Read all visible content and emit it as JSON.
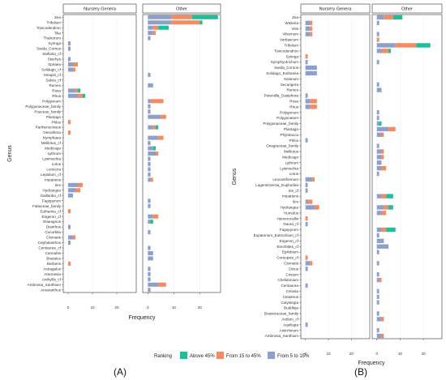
{
  "legend": {
    "title": "Ranking",
    "items": [
      {
        "label": "Above 45%",
        "color": "#1dbf99"
      },
      {
        "label": "From 15 to 45%",
        "color": "#f58b5e"
      },
      {
        "label": "From 5 to 15%",
        "color": "#8da0cb"
      }
    ]
  },
  "chart_data": [
    {
      "type": "bar",
      "orientation": "horizontal",
      "stacked": true,
      "caption": "(A)",
      "xlabel": "Frequency",
      "ylabel": "Genus",
      "facets": [
        "Nursery Genera",
        "Other"
      ],
      "xlim": [
        -2,
        28
      ],
      "xticks": [
        0,
        10,
        20
      ],
      "series_names": [
        "From 5 to 15%",
        "From 15 to 45%",
        "Above 45%"
      ],
      "categories": [
        "Zea",
        "Trifolium",
        "Toxicodendron",
        "Tilia",
        "Thalictrum",
        "Syringa",
        "Swida_Cornus",
        "Stellaria_cf",
        "Stachys",
        "Spiraea",
        "Solidago_cf",
        "Sinapis_cf",
        "Salvia_cf",
        "Rumex",
        "Rosa",
        "Rhus",
        "Polygonum",
        "Polygonaceae_family",
        "Poaceae_family",
        "Plantago",
        "Phlox",
        "Parthenocissus",
        "Oenothera",
        "Nymphaea",
        "Melilotus_cf",
        "Medicago",
        "Lythrum",
        "Lysimachia",
        "Lotus",
        "Lonicera",
        "Lepidium_cf",
        "Impatiens",
        "Ilex",
        "Hydrangea",
        "Gaillardia_cf",
        "Fagopyrum",
        "Fabaceae_family",
        "Euthamia_cf",
        "Erigeron_cf",
        "Elaeagnus",
        "Dianthus",
        "Cucurbita",
        "Clematis",
        "Cephalanthus",
        "Centaurea_cf",
        "Cannabis",
        "Brassica",
        "Berberis",
        "Astragalus",
        "Artemesia",
        "Anthyllis_cf",
        "Ambrosia_Xanthium",
        "Amaranthus"
      ],
      "values": {
        "Nursery Genera": [
          [
            0,
            0,
            0
          ],
          [
            0,
            0,
            0
          ],
          [
            0,
            0,
            0
          ],
          [
            0,
            0,
            0
          ],
          [
            0,
            0,
            0
          ],
          [
            1,
            0,
            0
          ],
          [
            1,
            0,
            0
          ],
          [
            0,
            0,
            0
          ],
          [
            1,
            0,
            0
          ],
          [
            2,
            2,
            0
          ],
          [
            2,
            1,
            0
          ],
          [
            0,
            0,
            0
          ],
          [
            0,
            0,
            0
          ],
          [
            0,
            0,
            0
          ],
          [
            3,
            1,
            1
          ],
          [
            4,
            2,
            1
          ],
          [
            0,
            0,
            0
          ],
          [
            0,
            0,
            0
          ],
          [
            0,
            0,
            0
          ],
          [
            0,
            0,
            0
          ],
          [
            0,
            1,
            0
          ],
          [
            0,
            0,
            0
          ],
          [
            0,
            1,
            0
          ],
          [
            0,
            0,
            0
          ],
          [
            0,
            0,
            0
          ],
          [
            0,
            0,
            0
          ],
          [
            0,
            0,
            0
          ],
          [
            0,
            0,
            0
          ],
          [
            0,
            0,
            0
          ],
          [
            0,
            0,
            0
          ],
          [
            0,
            0,
            0
          ],
          [
            0,
            0,
            0
          ],
          [
            4,
            2,
            0
          ],
          [
            3,
            2,
            0
          ],
          [
            2,
            0,
            0
          ],
          [
            0,
            0,
            0
          ],
          [
            0,
            0,
            0
          ],
          [
            0,
            1,
            0
          ],
          [
            0,
            0,
            0
          ],
          [
            0,
            0,
            0
          ],
          [
            1,
            0,
            0
          ],
          [
            0,
            0,
            0
          ],
          [
            2,
            1,
            0
          ],
          [
            1,
            0,
            0
          ],
          [
            0,
            0,
            0
          ],
          [
            0,
            0,
            0
          ],
          [
            0,
            0,
            0
          ],
          [
            0,
            1,
            0
          ],
          [
            0,
            0,
            0
          ],
          [
            0,
            0,
            0
          ],
          [
            0,
            0,
            0
          ],
          [
            0,
            0,
            0
          ],
          [
            0,
            0,
            0
          ]
        ],
        "Other": [
          [
            9,
            8,
            10
          ],
          [
            9,
            11,
            1
          ],
          [
            2,
            2,
            4
          ],
          [
            2,
            1,
            0
          ],
          [
            1,
            0,
            0
          ],
          [
            0,
            0,
            0
          ],
          [
            0,
            0,
            0
          ],
          [
            0,
            0,
            0
          ],
          [
            0,
            0,
            0
          ],
          [
            0,
            0,
            0
          ],
          [
            0,
            0,
            0
          ],
          [
            1,
            0,
            0
          ],
          [
            0,
            0,
            0
          ],
          [
            2,
            0,
            0
          ],
          [
            0,
            0,
            0
          ],
          [
            0,
            0,
            0
          ],
          [
            1,
            5,
            0
          ],
          [
            1,
            0,
            0
          ],
          [
            1,
            0,
            0
          ],
          [
            5,
            2,
            0
          ],
          [
            0,
            0,
            0
          ],
          [
            2,
            1,
            1
          ],
          [
            0,
            0,
            0
          ],
          [
            4,
            2,
            0
          ],
          [
            1,
            0,
            0
          ],
          [
            2,
            0,
            1
          ],
          [
            3,
            1,
            0
          ],
          [
            1,
            0,
            0
          ],
          [
            1,
            0,
            0
          ],
          [
            1,
            0,
            0
          ],
          [
            1,
            0,
            0
          ],
          [
            1,
            1,
            0
          ],
          [
            0,
            0,
            0
          ],
          [
            0,
            0,
            0
          ],
          [
            0,
            0,
            0
          ],
          [
            1,
            0,
            0
          ],
          [
            1,
            0,
            0
          ],
          [
            0,
            0,
            0
          ],
          [
            2,
            2,
            0
          ],
          [
            1,
            0,
            1
          ],
          [
            0,
            0,
            0
          ],
          [
            1,
            0,
            0
          ],
          [
            0,
            0,
            0
          ],
          [
            0,
            0,
            0
          ],
          [
            1,
            0,
            0
          ],
          [
            2,
            0,
            0
          ],
          [
            2,
            0,
            0
          ],
          [
            0,
            0,
            0
          ],
          [
            1,
            0,
            0
          ],
          [
            1,
            0,
            0
          ],
          [
            1,
            0,
            0
          ],
          [
            4,
            3,
            0
          ],
          [
            1,
            0,
            0
          ]
        ]
      }
    },
    {
      "type": "bar",
      "orientation": "horizontal",
      "stacked": true,
      "caption": "(B)",
      "xlabel": "Frequency",
      "ylabel": "Genus",
      "facets": [
        "Nursery Genera",
        "Other"
      ],
      "xlim": [
        -2,
        28
      ],
      "xticks": [
        0,
        10,
        20
      ],
      "series_names": [
        "From 5 to 15%",
        "From 15 to 45%",
        "Above 45%"
      ],
      "categories": [
        "Zea",
        "Wisteria",
        "Vitis",
        "Viburnum",
        "Verbascum",
        "Trifolium",
        "Toxicodendron",
        "Syringa",
        "Symphyotrichum",
        "Swida_Cornus",
        "Solidago_Euthamia",
        "Solanum",
        "Securigera",
        "Rumex",
        "Potentilla_Dasiphora",
        "Rosa",
        "Rhus",
        "Polygonum",
        "Polygonatum",
        "Polygonaceae_family",
        "Plantago",
        "Phytolacca",
        "Phlox",
        "Onagraceae_family",
        "Melilotus",
        "Medicago",
        "Lythrum",
        "Lysimachia",
        "Lotus",
        "Leucanthemum",
        "Lagerstroemia_Euphorbia",
        "Iris_cf",
        "Impatiens",
        "Ilex",
        "Hydrangea",
        "Humulus",
        "Hemerocallis",
        "Gaura_cf",
        "Fagopyrum",
        "Eupatorium_Eutrochium_cf",
        "Erigeron_cf",
        "Erechtites_cf",
        "Epilobium",
        "Coreopsis_cf",
        "Clematis",
        "Citrus",
        "Cirsium",
        "Chelidonium",
        "Centaurea",
        "Celosia",
        "Celastrus",
        "Calystegia",
        "Buddleja",
        "Brassicaceae_family",
        "Ardium_cf",
        "Aquilegia",
        "Antirrhinum",
        "Ambrosia_Xanthium"
      ],
      "values": {
        "Nursery Genera": [
          [
            0,
            0,
            0
          ],
          [
            2,
            1,
            0
          ],
          [
            2,
            1,
            0
          ],
          [
            2,
            1,
            0
          ],
          [
            0,
            0,
            0
          ],
          [
            0,
            0,
            0
          ],
          [
            0,
            0,
            0
          ],
          [
            0,
            1,
            0
          ],
          [
            1,
            0,
            0
          ],
          [
            5,
            0,
            0
          ],
          [
            5,
            0,
            0
          ],
          [
            0,
            0,
            0
          ],
          [
            0,
            0,
            0
          ],
          [
            0,
            0,
            0
          ],
          [
            1,
            0,
            0
          ],
          [
            2,
            3,
            0
          ],
          [
            2,
            3,
            0
          ],
          [
            0,
            0,
            0
          ],
          [
            0,
            0,
            0
          ],
          [
            0,
            0,
            0
          ],
          [
            0,
            0,
            0
          ],
          [
            0,
            0,
            0
          ],
          [
            1,
            0,
            0
          ],
          [
            0,
            0,
            0
          ],
          [
            0,
            0,
            0
          ],
          [
            0,
            0,
            0
          ],
          [
            0,
            0,
            0
          ],
          [
            0,
            0,
            0
          ],
          [
            0,
            0,
            0
          ],
          [
            3,
            1,
            0
          ],
          [
            1,
            0,
            0
          ],
          [
            1,
            0,
            0
          ],
          [
            0,
            0,
            0
          ],
          [
            1,
            2,
            0
          ],
          [
            4,
            2,
            0
          ],
          [
            0,
            0,
            0
          ],
          [
            0,
            1,
            0
          ],
          [
            1,
            0,
            0
          ],
          [
            0,
            0,
            0
          ],
          [
            0,
            0,
            0
          ],
          [
            0,
            0,
            0
          ],
          [
            0,
            0,
            0
          ],
          [
            0,
            0,
            0
          ],
          [
            0,
            1,
            0
          ],
          [
            2,
            1,
            0
          ],
          [
            1,
            0,
            0
          ],
          [
            0,
            0,
            0
          ],
          [
            0,
            0,
            0
          ],
          [
            1,
            0,
            0
          ],
          [
            0,
            0,
            0
          ],
          [
            0,
            0,
            0
          ],
          [
            0,
            0,
            0
          ],
          [
            0,
            0,
            0
          ],
          [
            0,
            0,
            0
          ],
          [
            0,
            0,
            0
          ],
          [
            1,
            0,
            0
          ],
          [
            0,
            0,
            0
          ],
          [
            0,
            0,
            0
          ]
        ],
        "Other": [
          [
            3,
            4,
            4
          ],
          [
            1,
            0,
            0
          ],
          [
            0,
            0,
            0
          ],
          [
            1,
            0,
            0
          ],
          [
            0,
            1,
            0
          ],
          [
            8,
            9,
            6
          ],
          [
            2,
            3,
            1
          ],
          [
            0,
            0,
            0
          ],
          [
            1,
            0,
            0
          ],
          [
            0,
            0,
            0
          ],
          [
            0,
            0,
            0
          ],
          [
            0,
            0,
            0
          ],
          [
            1,
            0,
            0
          ],
          [
            2,
            0,
            0
          ],
          [
            0,
            0,
            0
          ],
          [
            0,
            0,
            0
          ],
          [
            0,
            0,
            0
          ],
          [
            1,
            0,
            0
          ],
          [
            1,
            0,
            0
          ],
          [
            1,
            0,
            1
          ],
          [
            5,
            3,
            0
          ],
          [
            2,
            1,
            0
          ],
          [
            0,
            0,
            0
          ],
          [
            1,
            0,
            0
          ],
          [
            2,
            1,
            0
          ],
          [
            2,
            1,
            0
          ],
          [
            2,
            0,
            0
          ],
          [
            2,
            2,
            0
          ],
          [
            1,
            0,
            0
          ],
          [
            0,
            0,
            0
          ],
          [
            0,
            0,
            0
          ],
          [
            0,
            0,
            0
          ],
          [
            2,
            2,
            3
          ],
          [
            0,
            0,
            0
          ],
          [
            3,
            2,
            2
          ],
          [
            2,
            2,
            0
          ],
          [
            0,
            0,
            0
          ],
          [
            0,
            0,
            0
          ],
          [
            2,
            2,
            4
          ],
          [
            1,
            0,
            0
          ],
          [
            3,
            0,
            0
          ],
          [
            5,
            0,
            0
          ],
          [
            1,
            0,
            0
          ],
          [
            0,
            0,
            0
          ],
          [
            1,
            0,
            0
          ],
          [
            0,
            0,
            0
          ],
          [
            1,
            0,
            0
          ],
          [
            1,
            1,
            0
          ],
          [
            0,
            0,
            0
          ],
          [
            1,
            0,
            0
          ],
          [
            1,
            0,
            0
          ],
          [
            1,
            0,
            0
          ],
          [
            0,
            0,
            0
          ],
          [
            1,
            0,
            0
          ],
          [
            2,
            1,
            0
          ],
          [
            0,
            0,
            0
          ],
          [
            1,
            0,
            0
          ],
          [
            2,
            1,
            0
          ]
        ]
      }
    }
  ]
}
